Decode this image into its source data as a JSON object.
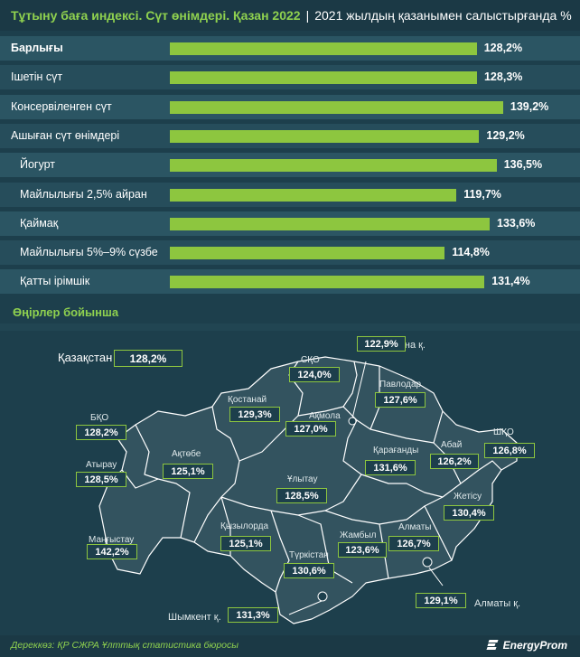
{
  "header": {
    "title": "Тұтыну баға индексі. Сүт өнімдері. Қазан 2022",
    "separator": "|",
    "subtitle": "2021 жылдың қазанымен салыстырғанда %"
  },
  "chart_data": {
    "type": "bar",
    "categories": [
      "Барлығы",
      "Ішетін сүт",
      "Консервіленген сүт",
      "Ашыған сүт өнімдері",
      "Йогурт",
      "Майлылығы 2,5% айран",
      "Қаймақ",
      "Майлылығы 5%–9% сүзбе",
      "Қатты ірімшік"
    ],
    "values": [
      128.2,
      128.3,
      139.2,
      129.2,
      136.5,
      119.7,
      133.6,
      114.8,
      131.4
    ],
    "value_labels": [
      "128,2%",
      "128,3%",
      "139,2%",
      "129,2%",
      "136,5%",
      "119,7%",
      "133,6%",
      "114,8%",
      "131,4%"
    ],
    "bar_color": "#8dc63f"
  },
  "regions_section": {
    "title": "Өңірлер бойынша",
    "country": {
      "name": "Қазақстан",
      "value": "128,2%"
    },
    "regions": [
      {
        "name": "СҚО",
        "value": "124,0%"
      },
      {
        "name": "Астана қ.",
        "value": "122,9%"
      },
      {
        "name": "Павлодар",
        "value": "127,6%"
      },
      {
        "name": "Қостанай",
        "value": "129,3%"
      },
      {
        "name": "Ақмола",
        "value": "127,0%"
      },
      {
        "name": "БҚО",
        "value": "128,2%"
      },
      {
        "name": "Ақтөбе",
        "value": "125,1%"
      },
      {
        "name": "Атырау",
        "value": "128,5%"
      },
      {
        "name": "Ұлытау",
        "value": "128,5%"
      },
      {
        "name": "Қарағанды",
        "value": "131,6%"
      },
      {
        "name": "Абай",
        "value": "126,2%"
      },
      {
        "name": "ШҚО",
        "value": "126,8%"
      },
      {
        "name": "Жетісу",
        "value": "130,4%"
      },
      {
        "name": "Маңғыстау",
        "value": "142,2%"
      },
      {
        "name": "Қызылорда",
        "value": "125,1%"
      },
      {
        "name": "Түркістан",
        "value": "130,6%"
      },
      {
        "name": "Жамбыл",
        "value": "123,6%"
      },
      {
        "name": "Алматы",
        "value": "126,7%"
      },
      {
        "name": "Алматы қ.",
        "value": "129,1%"
      },
      {
        "name": "Шымкент қ.",
        "value": "131,3%"
      }
    ]
  },
  "footer": {
    "source": "Дереккөз: ҚР СЖРА Ұлттық статистика бюросы",
    "brand": "EnergyProm"
  },
  "colors": {
    "background": "#1d3f4c",
    "accent": "#8dc63f",
    "map_fill": "#33535f",
    "map_border": "#ffffff"
  }
}
